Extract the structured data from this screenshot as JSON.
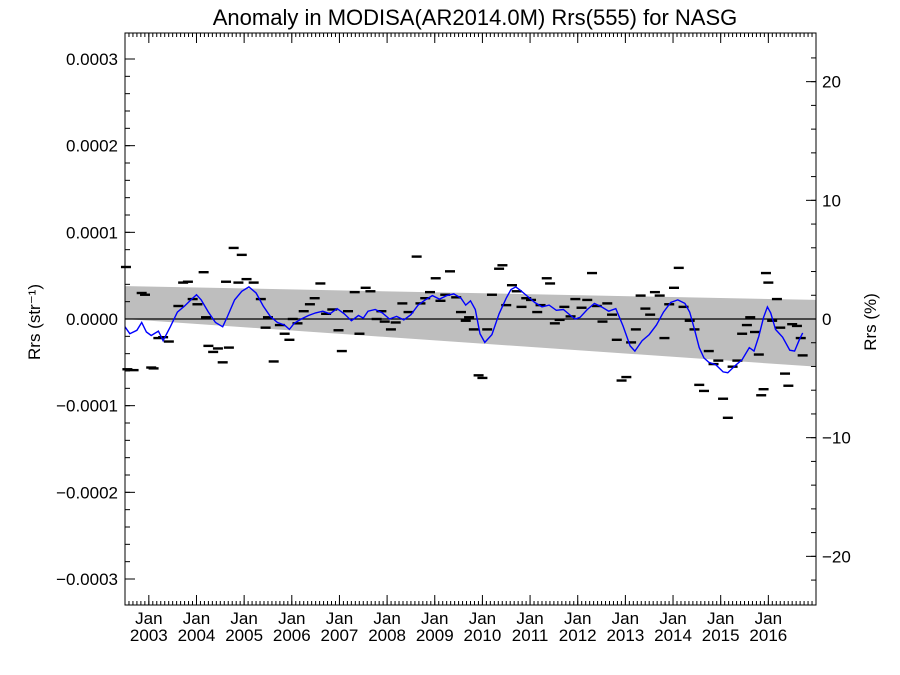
{
  "chart_data": {
    "type": "line",
    "title": "Anomaly in MODISA(AR2014.0M) Rrs(555) for NASG",
    "ylabel_left": "Rrs (str⁻¹)",
    "ylabel_right": "Rrs (%)",
    "ylim": [
      -0.00033,
      0.00033
    ],
    "ylim_right": [
      -24.1,
      24.1
    ],
    "xlim": [
      2002.5,
      2017.0
    ],
    "yticks_left": [
      {
        "value": 0.0003,
        "label": "0.0003"
      },
      {
        "value": 0.0002,
        "label": "0.0002"
      },
      {
        "value": 0.0001,
        "label": "0.0001"
      },
      {
        "value": 0.0,
        "label": "0.0000"
      },
      {
        "value": -0.0001,
        "label": "−0.0001"
      },
      {
        "value": -0.0002,
        "label": "−0.0002"
      },
      {
        "value": -0.0003,
        "label": "−0.0003"
      }
    ],
    "yticks_right": [
      {
        "value": 20,
        "label": "20"
      },
      {
        "value": 10,
        "label": "10"
      },
      {
        "value": 0,
        "label": "0"
      },
      {
        "value": -10,
        "label": "−10"
      },
      {
        "value": -20,
        "label": "−20"
      }
    ],
    "xticks": [
      {
        "value": 2003.0,
        "month": "Jan",
        "year": "2003"
      },
      {
        "value": 2004.0,
        "month": "Jan",
        "year": "2004"
      },
      {
        "value": 2005.0,
        "month": "Jan",
        "year": "2005"
      },
      {
        "value": 2006.0,
        "month": "Jan",
        "year": "2006"
      },
      {
        "value": 2007.0,
        "month": "Jan",
        "year": "2007"
      },
      {
        "value": 2008.0,
        "month": "Jan",
        "year": "2008"
      },
      {
        "value": 2009.0,
        "month": "Jan",
        "year": "2009"
      },
      {
        "value": 2010.0,
        "month": "Jan",
        "year": "2010"
      },
      {
        "value": 2011.0,
        "month": "Jan",
        "year": "2011"
      },
      {
        "value": 2012.0,
        "month": "Jan",
        "year": "2012"
      },
      {
        "value": 2013.0,
        "month": "Jan",
        "year": "2013"
      },
      {
        "value": 2014.0,
        "month": "Jan",
        "year": "2014"
      },
      {
        "value": 2015.0,
        "month": "Jan",
        "year": "2015"
      },
      {
        "value": 2016.0,
        "month": "Jan",
        "year": "2016"
      }
    ],
    "band": {
      "x": [
        2002.5,
        2017.0
      ],
      "upper": [
        3.8e-05,
        2.2e-05
      ],
      "lower": [
        0.0,
        -5.5e-05
      ],
      "color": "#bebebe"
    },
    "zero_line": 0.0,
    "series": [
      {
        "type": "line",
        "color": "#0000ff",
        "points": [
          [
            2002.5,
            -9e-06
          ],
          [
            2002.6,
            -1.7e-05
          ],
          [
            2002.75,
            -1.3e-05
          ],
          [
            2002.85,
            -4e-06
          ],
          [
            2002.95,
            -1.5e-05
          ],
          [
            2003.05,
            -1.9e-05
          ],
          [
            2003.2,
            -1.4e-05
          ],
          [
            2003.3,
            -2.5e-05
          ],
          [
            2003.45,
            -9e-06
          ],
          [
            2003.6,
            8e-06
          ],
          [
            2003.75,
            1.5e-05
          ],
          [
            2003.9,
            2.3e-05
          ],
          [
            2004.0,
            2.8e-05
          ],
          [
            2004.1,
            2.2e-05
          ],
          [
            2004.25,
            8e-06
          ],
          [
            2004.4,
            -4e-06
          ],
          [
            2004.55,
            -9e-06
          ],
          [
            2004.65,
            3e-06
          ],
          [
            2004.8,
            2.2e-05
          ],
          [
            2004.95,
            3.2e-05
          ],
          [
            2005.1,
            3.7e-05
          ],
          [
            2005.25,
            3e-05
          ],
          [
            2005.4,
            1.5e-05
          ],
          [
            2005.55,
            3e-06
          ],
          [
            2005.7,
            -4e-06
          ],
          [
            2005.85,
            -7e-06
          ],
          [
            2005.95,
            -1.2e-05
          ],
          [
            2006.05,
            -5e-06
          ],
          [
            2006.2,
            0.0
          ],
          [
            2006.35,
            4e-06
          ],
          [
            2006.5,
            7e-06
          ],
          [
            2006.65,
            9e-06
          ],
          [
            2006.8,
            6e-06
          ],
          [
            2006.95,
            1.2e-05
          ],
          [
            2007.1,
            6e-06
          ],
          [
            2007.25,
            -2e-06
          ],
          [
            2007.4,
            4e-06
          ],
          [
            2007.5,
            1e-06
          ],
          [
            2007.6,
            9e-06
          ],
          [
            2007.75,
            1.1e-05
          ],
          [
            2007.9,
            7e-06
          ],
          [
            2008.05,
            0.0
          ],
          [
            2008.2,
            3e-06
          ],
          [
            2008.35,
            -1e-06
          ],
          [
            2008.5,
            5e-06
          ],
          [
            2008.65,
            1.6e-05
          ],
          [
            2008.8,
            2.2e-05
          ],
          [
            2008.95,
            2.7e-05
          ],
          [
            2009.1,
            2.3e-05
          ],
          [
            2009.25,
            2.7e-05
          ],
          [
            2009.4,
            2.9e-05
          ],
          [
            2009.55,
            2.4e-05
          ],
          [
            2009.65,
            1.6e-05
          ],
          [
            2009.75,
            2.1e-05
          ],
          [
            2009.85,
            1.1e-05
          ],
          [
            2009.95,
            -1.7e-05
          ],
          [
            2010.05,
            -2.7e-05
          ],
          [
            2010.2,
            -1.8e-05
          ],
          [
            2010.35,
            6e-06
          ],
          [
            2010.5,
            2.4e-05
          ],
          [
            2010.6,
            3.4e-05
          ],
          [
            2010.7,
            3.7e-05
          ],
          [
            2010.8,
            3.3e-05
          ],
          [
            2010.95,
            2.6e-05
          ],
          [
            2011.1,
            1.9e-05
          ],
          [
            2011.25,
            1.4e-05
          ],
          [
            2011.4,
            1.6e-05
          ],
          [
            2011.55,
            1e-05
          ],
          [
            2011.7,
            1.1e-05
          ],
          [
            2011.85,
            4e-06
          ],
          [
            2011.95,
            0.0
          ],
          [
            2012.05,
            2e-06
          ],
          [
            2012.2,
            1.1e-05
          ],
          [
            2012.35,
            1.8e-05
          ],
          [
            2012.5,
            1.4e-05
          ],
          [
            2012.65,
            9e-06
          ],
          [
            2012.8,
            1.2e-05
          ],
          [
            2012.95,
            -8e-06
          ],
          [
            2013.1,
            -3.1e-05
          ],
          [
            2013.2,
            -3.7e-05
          ],
          [
            2013.35,
            -2.5e-05
          ],
          [
            2013.5,
            -1.8e-05
          ],
          [
            2013.65,
            -7e-06
          ],
          [
            2013.8,
            8e-06
          ],
          [
            2013.95,
            1.9e-05
          ],
          [
            2014.1,
            2.2e-05
          ],
          [
            2014.25,
            1.8e-05
          ],
          [
            2014.35,
            8e-06
          ],
          [
            2014.45,
            -1.2e-05
          ],
          [
            2014.55,
            -3.3e-05
          ],
          [
            2014.65,
            -4.5e-05
          ],
          [
            2014.75,
            -5e-05
          ],
          [
            2014.9,
            -5.3e-05
          ],
          [
            2015.05,
            -6.1e-05
          ],
          [
            2015.15,
            -6.2e-05
          ],
          [
            2015.3,
            -5.4e-05
          ],
          [
            2015.45,
            -4.7e-05
          ],
          [
            2015.6,
            -3.3e-05
          ],
          [
            2015.7,
            -3.7e-05
          ],
          [
            2015.8,
            -2e-05
          ],
          [
            2015.9,
            2e-06
          ],
          [
            2015.98,
            1.4e-05
          ],
          [
            2016.05,
            7e-06
          ],
          [
            2016.15,
            -1.2e-05
          ],
          [
            2016.3,
            -2.1e-05
          ],
          [
            2016.45,
            -3.6e-05
          ],
          [
            2016.55,
            -3.7e-05
          ],
          [
            2016.65,
            -2.4e-05
          ],
          [
            2016.72,
            -1.6e-05
          ]
        ]
      },
      {
        "type": "dash-markers",
        "color": "#000000",
        "points": [
          [
            2002.52,
            6e-05
          ],
          [
            2002.55,
            -5.8e-05
          ],
          [
            2002.68,
            -5.9e-05
          ],
          [
            2002.85,
            3e-05
          ],
          [
            2002.92,
            2.8e-05
          ],
          [
            2003.05,
            -5.6e-05
          ],
          [
            2003.1,
            -5.7e-05
          ],
          [
            2003.2,
            -2.2e-05
          ],
          [
            2003.3,
            -2.1e-05
          ],
          [
            2003.42,
            -2.6e-05
          ],
          [
            2003.62,
            1.5e-05
          ],
          [
            2003.72,
            4.2e-05
          ],
          [
            2003.82,
            4.3e-05
          ],
          [
            2003.92,
            2.3e-05
          ],
          [
            2004.02,
            1.7e-05
          ],
          [
            2004.15,
            5.4e-05
          ],
          [
            2004.2,
            2e-06
          ],
          [
            2004.25,
            -3.1e-05
          ],
          [
            2004.35,
            -3.8e-05
          ],
          [
            2004.45,
            -3.4e-05
          ],
          [
            2004.55,
            -5e-05
          ],
          [
            2004.62,
            4.3e-05
          ],
          [
            2004.68,
            -3.3e-05
          ],
          [
            2004.78,
            8.2e-05
          ],
          [
            2004.88,
            4.2e-05
          ],
          [
            2004.95,
            7.4e-05
          ],
          [
            2005.05,
            4.6e-05
          ],
          [
            2005.2,
            4.2e-05
          ],
          [
            2005.35,
            2.3e-05
          ],
          [
            2005.45,
            -1e-05
          ],
          [
            2005.5,
            2e-06
          ],
          [
            2005.62,
            -4.9e-05
          ],
          [
            2005.75,
            -7e-06
          ],
          [
            2005.85,
            -1.7e-05
          ],
          [
            2005.95,
            -2.4e-05
          ],
          [
            2006.02,
            0.0
          ],
          [
            2006.12,
            -5e-06
          ],
          [
            2006.25,
            9e-06
          ],
          [
            2006.38,
            1.7e-05
          ],
          [
            2006.48,
            2.4e-05
          ],
          [
            2006.6,
            4.1e-05
          ],
          [
            2006.72,
            6e-06
          ],
          [
            2006.85,
            1.1e-05
          ],
          [
            2006.98,
            -1.3e-05
          ],
          [
            2007.05,
            -3.7e-05
          ],
          [
            2007.18,
            9e-06
          ],
          [
            2007.32,
            3.1e-05
          ],
          [
            2007.42,
            -1.7e-05
          ],
          [
            2007.55,
            3.6e-05
          ],
          [
            2007.65,
            3.2e-05
          ],
          [
            2007.78,
            0.0
          ],
          [
            2007.88,
            9e-06
          ],
          [
            2007.95,
            -3e-06
          ],
          [
            2008.08,
            -1.2e-05
          ],
          [
            2008.18,
            -4e-06
          ],
          [
            2008.32,
            1.8e-05
          ],
          [
            2008.45,
            8e-06
          ],
          [
            2008.62,
            7.2e-05
          ],
          [
            2008.7,
            1.8e-05
          ],
          [
            2008.8,
            2.4e-05
          ],
          [
            2008.9,
            3.1e-05
          ],
          [
            2009.02,
            4.7e-05
          ],
          [
            2009.12,
            2.1e-05
          ],
          [
            2009.22,
            2.8e-05
          ],
          [
            2009.32,
            5.5e-05
          ],
          [
            2009.45,
            2.5e-05
          ],
          [
            2009.55,
            8e-06
          ],
          [
            2009.65,
            -2e-06
          ],
          [
            2009.72,
            2e-06
          ],
          [
            2009.82,
            -1.2e-05
          ],
          [
            2009.92,
            -6.5e-05
          ],
          [
            2010.0,
            -6.8e-05
          ],
          [
            2010.1,
            -1.2e-05
          ],
          [
            2010.2,
            2.8e-05
          ],
          [
            2010.35,
            5.8e-05
          ],
          [
            2010.42,
            6.2e-05
          ],
          [
            2010.5,
            1.6e-05
          ],
          [
            2010.62,
            3.9e-05
          ],
          [
            2010.72,
            3.2e-05
          ],
          [
            2010.82,
            1.4e-05
          ],
          [
            2010.92,
            2.4e-05
          ],
          [
            2011.02,
            2.2e-05
          ],
          [
            2011.15,
            8e-06
          ],
          [
            2011.22,
            1.6e-05
          ],
          [
            2011.35,
            4.7e-05
          ],
          [
            2011.42,
            4.1e-05
          ],
          [
            2011.52,
            -5e-06
          ],
          [
            2011.62,
            -1e-06
          ],
          [
            2011.72,
            1.4e-05
          ],
          [
            2011.85,
            3e-06
          ],
          [
            2011.95,
            2.3e-05
          ],
          [
            2012.08,
            1.3e-05
          ],
          [
            2012.2,
            2.2e-05
          ],
          [
            2012.3,
            5.3e-05
          ],
          [
            2012.4,
            1.5e-05
          ],
          [
            2012.52,
            -3e-06
          ],
          [
            2012.62,
            1.8e-05
          ],
          [
            2012.72,
            5e-06
          ],
          [
            2012.82,
            -2.4e-05
          ],
          [
            2012.92,
            -7.1e-05
          ],
          [
            2013.02,
            -6.7e-05
          ],
          [
            2013.12,
            -2.7e-05
          ],
          [
            2013.22,
            -1.2e-05
          ],
          [
            2013.32,
            2.7e-05
          ],
          [
            2013.42,
            1.2e-05
          ],
          [
            2013.52,
            5e-06
          ],
          [
            2013.62,
            3.1e-05
          ],
          [
            2013.72,
            2.7e-05
          ],
          [
            2013.82,
            -2.2e-05
          ],
          [
            2013.92,
            1.7e-05
          ],
          [
            2014.02,
            3.6e-05
          ],
          [
            2014.12,
            5.9e-05
          ],
          [
            2014.22,
            1.4e-05
          ],
          [
            2014.35,
            -2e-06
          ],
          [
            2014.45,
            -1.2e-05
          ],
          [
            2014.55,
            -7.6e-05
          ],
          [
            2014.65,
            -8.3e-05
          ],
          [
            2014.75,
            -3.7e-05
          ],
          [
            2014.85,
            -5.2e-05
          ],
          [
            2014.95,
            -4.8e-05
          ],
          [
            2015.05,
            -9.2e-05
          ],
          [
            2015.15,
            -0.000114
          ],
          [
            2015.25,
            -5.5e-05
          ],
          [
            2015.35,
            -4.8e-05
          ],
          [
            2015.45,
            -1.7e-05
          ],
          [
            2015.55,
            -7e-06
          ],
          [
            2015.62,
            2e-06
          ],
          [
            2015.72,
            -1.5e-05
          ],
          [
            2015.8,
            -4.1e-05
          ],
          [
            2015.85,
            -8.8e-05
          ],
          [
            2015.9,
            -8.1e-05
          ],
          [
            2015.95,
            5.3e-05
          ],
          [
            2016.0,
            4.2e-05
          ],
          [
            2016.08,
            -2e-06
          ],
          [
            2016.18,
            2.3e-05
          ],
          [
            2016.25,
            -1e-05
          ],
          [
            2016.35,
            -6.3e-05
          ],
          [
            2016.42,
            -7.7e-05
          ],
          [
            2016.5,
            -6e-06
          ],
          [
            2016.6,
            -8e-06
          ],
          [
            2016.68,
            -2.2e-05
          ],
          [
            2016.72,
            -4.2e-05
          ]
        ]
      }
    ],
    "grid": false
  }
}
